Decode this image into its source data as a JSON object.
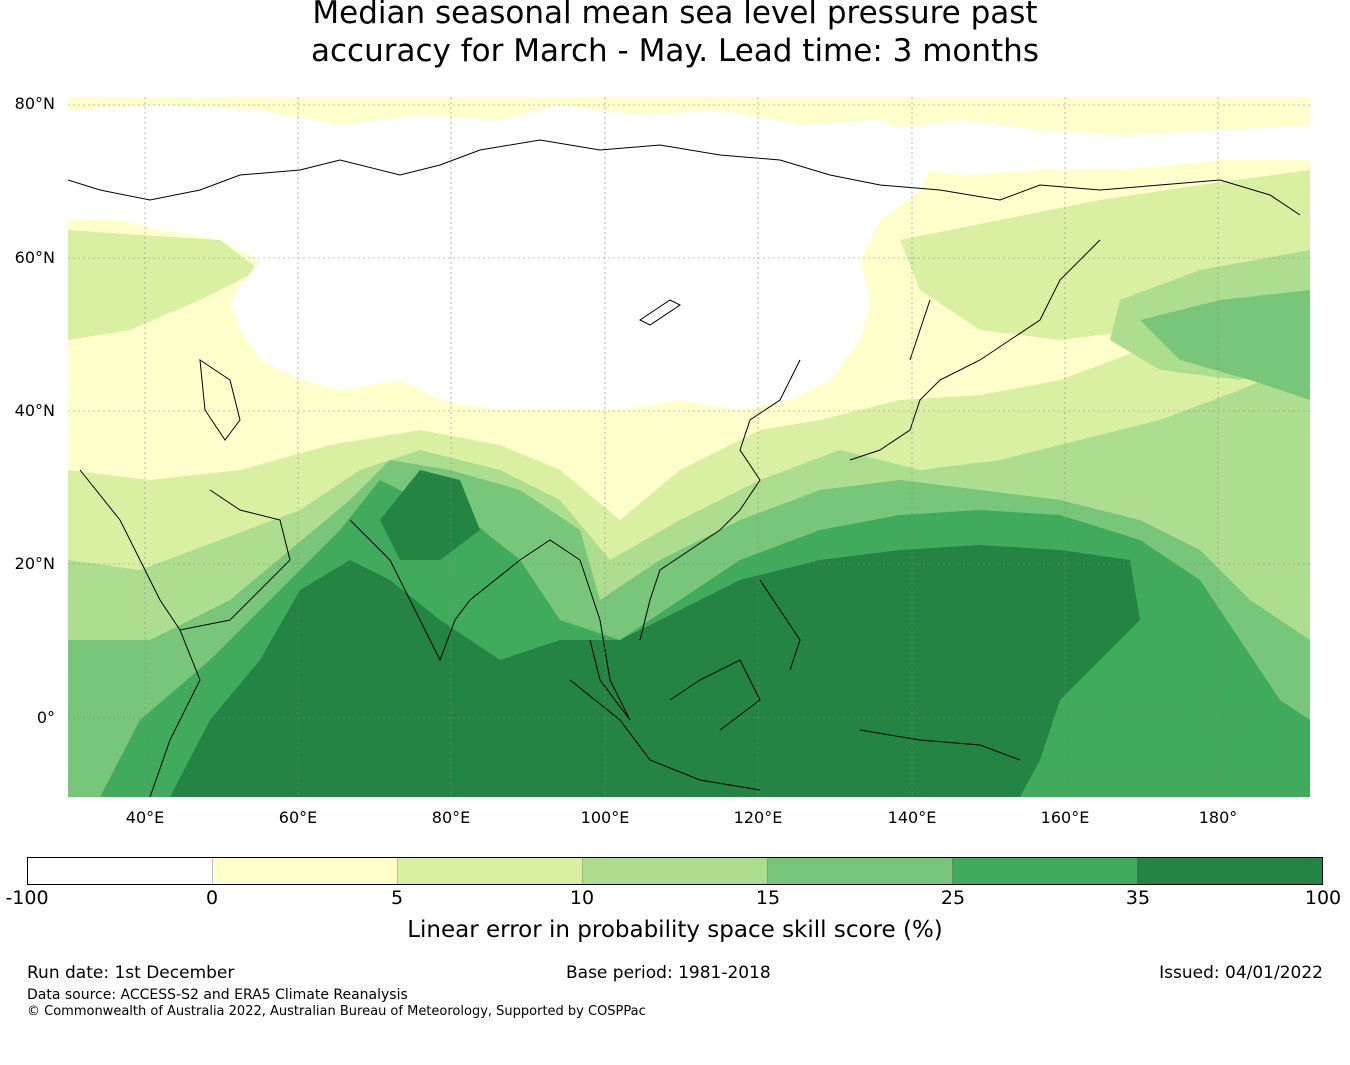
{
  "title": {
    "line1": "Median seasonal mean sea level pressure past",
    "line2": "accuracy for March - May. Lead time: 3 months"
  },
  "map": {
    "region": "Asia / Indian Ocean / Western Pacific",
    "lon_range": [
      30,
      192
    ],
    "lat_range": [
      -10,
      82
    ],
    "lat_labels": [
      "80°N",
      "60°N",
      "40°N",
      "20°N",
      "0°"
    ],
    "lon_labels": [
      "40°E",
      "60°E",
      "80°E",
      "100°E",
      "120°E",
      "140°E",
      "160°E",
      "180°"
    ]
  },
  "colorbar": {
    "label": "Linear error in probability space skill score (%)",
    "ticks": [
      "-100",
      "0",
      "5",
      "10",
      "15",
      "25",
      "35",
      "100"
    ],
    "colors": [
      "#ffffff",
      "#ffffcc",
      "#d9f0a3",
      "#addd8e",
      "#78c679",
      "#41ab5d",
      "#238443"
    ]
  },
  "footer": {
    "run_date": "Run date: 1st December",
    "base_period": "Base period: 1981-2018",
    "issued": "Issued: 04/01/2022",
    "data_source": "Data source: ACCESS-S2 and ERA5 Climate Reanalysis",
    "copyright": "© Commonwealth of Australia 2022, Australian Bureau of Meteorology, Supported by COSPPac"
  }
}
